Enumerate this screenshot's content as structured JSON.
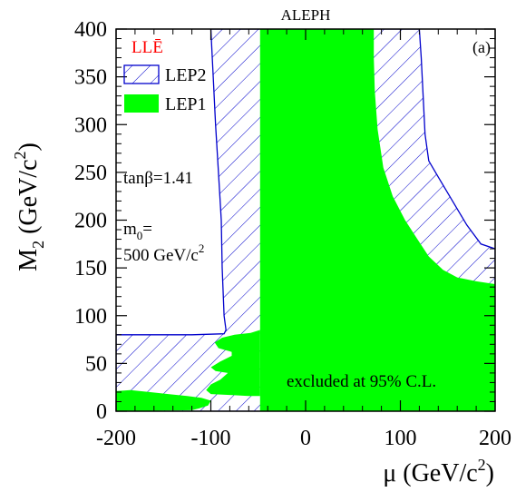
{
  "chart_data": {
    "type": "area",
    "title": "ALEPH",
    "panel_label": "(a)",
    "coupling_label": "LLĒ",
    "xlabel": {
      "base": "μ (GeV/c",
      "sup": "2",
      "end": ")"
    },
    "ylabel": {
      "main": "M",
      "sub": "2",
      "mid": " (GeV/c",
      "sup": "2",
      "end": ")"
    },
    "xlim": [
      -200,
      200
    ],
    "ylim": [
      0,
      400
    ],
    "x_ticks": [
      -200,
      -100,
      0,
      100,
      200
    ],
    "y_ticks": [
      0,
      50,
      100,
      150,
      200,
      250,
      300,
      350,
      400
    ],
    "legend": {
      "placement": "top-left",
      "entries": [
        "LEP2",
        "LEP1"
      ]
    },
    "annotations": {
      "tanb": "tanβ=1.41",
      "m0_line1_base": "m",
      "m0_line1_sub": "0",
      "m0_line1_end": "=",
      "m0_line2_base": "500 GeV/c",
      "m0_line2_sup": "2",
      "excluded": "excluded at 95% C.L."
    },
    "colors": {
      "lep1": "#00ff00",
      "lep2": "#0000cc",
      "coupling": "#ff0000"
    },
    "series": [
      {
        "name": "LEP2",
        "style": "hatched",
        "regions": [
          [
            [
              -100,
              400
            ],
            [
              -98,
              360
            ],
            [
              -95,
              300
            ],
            [
              -92,
              250
            ],
            [
              -89,
              200
            ],
            [
              -88,
              150
            ],
            [
              -86,
              100
            ],
            [
              -84,
              85
            ],
            [
              -86,
              81
            ],
            [
              -120,
              80
            ],
            [
              -160,
              80
            ],
            [
              -200,
              80
            ],
            [
              -200,
              0
            ],
            [
              200,
              0
            ],
            [
              200,
              170
            ],
            [
              185,
              175
            ],
            [
              170,
              195
            ],
            [
              155,
              220
            ],
            [
              140,
              245
            ],
            [
              130,
              262
            ],
            [
              126,
              290
            ],
            [
              124,
              330
            ],
            [
              122,
              370
            ],
            [
              120,
              400
            ]
          ]
        ]
      },
      {
        "name": "LEP1",
        "style": "solid",
        "regions": [
          [
            [
              -48,
              400
            ],
            [
              72,
              400
            ],
            [
              72,
              370
            ],
            [
              73,
              335
            ],
            [
              76,
              295
            ],
            [
              82,
              255
            ],
            [
              92,
              225
            ],
            [
              105,
              200
            ],
            [
              118,
              180
            ],
            [
              130,
              162
            ],
            [
              145,
              148
            ],
            [
              160,
              140
            ],
            [
              180,
              136
            ],
            [
              200,
              133
            ],
            [
              200,
              0
            ],
            [
              -48,
              0
            ]
          ],
          [
            [
              -48,
              85
            ],
            [
              -58,
              82
            ],
            [
              -75,
              80
            ],
            [
              -88,
              77
            ],
            [
              -96,
              72
            ],
            [
              -92,
              66
            ],
            [
              -78,
              62
            ],
            [
              -78,
              58
            ],
            [
              -90,
              52
            ],
            [
              -100,
              46
            ],
            [
              -95,
              42
            ],
            [
              -82,
              40
            ],
            [
              -90,
              33
            ],
            [
              -100,
              28
            ],
            [
              -105,
              22
            ],
            [
              -100,
              18
            ],
            [
              -80,
              17
            ],
            [
              -60,
              16
            ],
            [
              -48,
              16
            ]
          ],
          [
            [
              -200,
              21
            ],
            [
              -185,
              22
            ],
            [
              -165,
              20
            ],
            [
              -145,
              18
            ],
            [
              -125,
              16
            ],
            [
              -110,
              14
            ],
            [
              -100,
              11
            ],
            [
              -103,
              6
            ],
            [
              -112,
              3
            ],
            [
              -120,
              1
            ],
            [
              -200,
              0
            ]
          ]
        ]
      }
    ]
  }
}
